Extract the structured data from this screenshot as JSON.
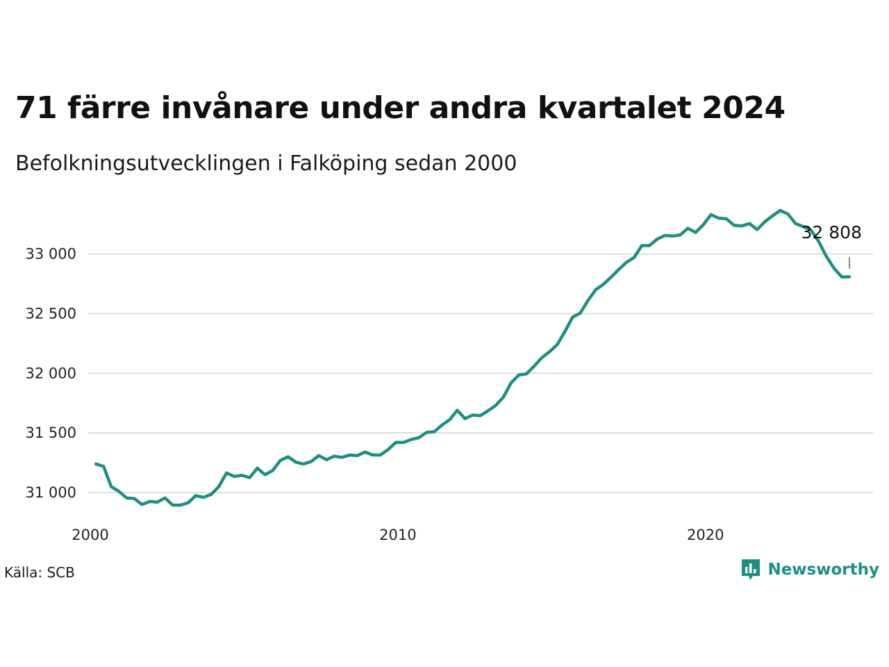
{
  "header": {
    "title": "71 färre invånare under andra kvartalet 2024",
    "subtitle": "Befolkningsutvecklingen i Falköping sedan 2000"
  },
  "footer": {
    "source": "Källa: SCB",
    "brand": "Newsworthy"
  },
  "colors": {
    "line": "#1a9080",
    "grid": "#dddddd",
    "brand": "#1a9080"
  },
  "icons": {
    "brand_logo": "newsworthy-logo-icon"
  },
  "chart_data": {
    "type": "line",
    "title": "71 färre invånare under andra kvartalet 2024",
    "subtitle": "Befolkningsutvecklingen i Falköping sedan 2000",
    "xlabel": "",
    "ylabel": "",
    "xlim": [
      2000.0,
      2024.5
    ],
    "ylim": [
      30860,
      33440
    ],
    "x_ticks": [
      2000,
      2010,
      2020
    ],
    "x_tick_labels": [
      "2000",
      "2010",
      "2020"
    ],
    "y_ticks": [
      31000,
      31500,
      32000,
      32500,
      33000
    ],
    "y_tick_labels": [
      "31 000",
      "31 500",
      "32 000",
      "32 500",
      "33 000"
    ],
    "grid": "horizontal",
    "end_label": "32 808",
    "series": [
      {
        "x": [
          2000.0,
          2000.25,
          2000.5,
          2000.75,
          2001.0,
          2001.25,
          2001.5,
          2001.75,
          2002.0,
          2002.25,
          2002.5,
          2002.75,
          2003.0,
          2003.25,
          2003.5,
          2003.75,
          2004.0,
          2004.25,
          2004.5,
          2004.75,
          2005.0,
          2005.25,
          2005.5,
          2005.75,
          2006.0,
          2006.25,
          2006.5,
          2006.75,
          2007.0,
          2007.25,
          2007.5,
          2007.75,
          2008.0,
          2008.25,
          2008.5,
          2008.75,
          2009.0,
          2009.25,
          2009.5,
          2009.75,
          2010.0,
          2010.25,
          2010.5,
          2010.75,
          2011.0,
          2011.25,
          2011.5,
          2011.75,
          2012.0,
          2012.25,
          2012.5,
          2012.75,
          2013.0,
          2013.25,
          2013.5,
          2013.75,
          2014.0,
          2014.25,
          2014.5,
          2014.75,
          2015.0,
          2015.25,
          2015.5,
          2015.75,
          2016.0,
          2016.25,
          2016.5,
          2016.75,
          2017.0,
          2017.25,
          2017.5,
          2017.75,
          2018.0,
          2018.25,
          2018.5,
          2018.75,
          2019.0,
          2019.25,
          2019.5,
          2019.75,
          2020.0,
          2020.25,
          2020.5,
          2020.75,
          2021.0,
          2021.25,
          2021.5,
          2021.75,
          2022.0,
          2022.25,
          2022.5,
          2022.75,
          2023.0,
          2023.25,
          2023.5,
          2023.75,
          2024.0,
          2024.25,
          2024.5
        ],
        "values": [
          31240,
          31220,
          31050,
          31010,
          30955,
          30950,
          30900,
          30925,
          30920,
          30955,
          30895,
          30895,
          30915,
          30975,
          30960,
          30985,
          31050,
          31165,
          31135,
          31145,
          31125,
          31205,
          31150,
          31185,
          31270,
          31300,
          31255,
          31240,
          31260,
          31310,
          31275,
          31305,
          31295,
          31315,
          31310,
          31340,
          31315,
          31315,
          31360,
          31420,
          31420,
          31445,
          31460,
          31505,
          31510,
          31565,
          31610,
          31690,
          31620,
          31650,
          31645,
          31685,
          31730,
          31800,
          31920,
          31985,
          31995,
          32060,
          32130,
          32180,
          32240,
          32350,
          32470,
          32505,
          32610,
          32700,
          32745,
          32805,
          32870,
          32930,
          32970,
          33070,
          33070,
          33125,
          33155,
          33150,
          33160,
          33215,
          33180,
          33245,
          33330,
          33300,
          33295,
          33240,
          33235,
          33255,
          33205,
          33270,
          33320,
          33365,
          33335,
          33255,
          33230,
          33200,
          33105,
          32980,
          32880,
          32808,
          32808
        ]
      }
    ]
  }
}
